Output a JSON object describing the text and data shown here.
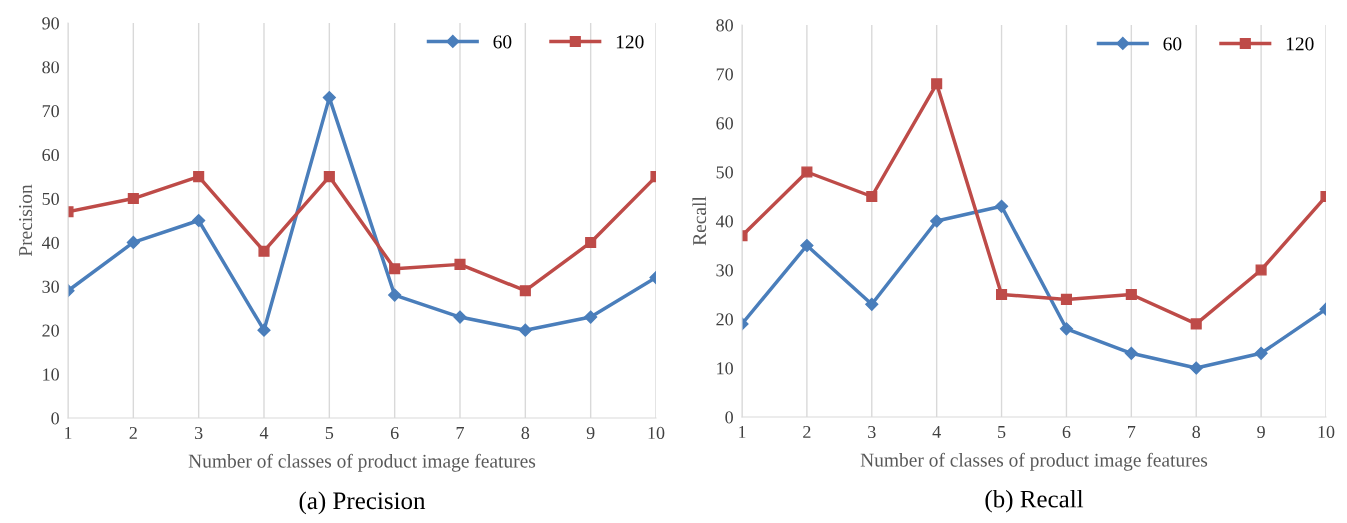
{
  "chart_data": [
    {
      "type": "line",
      "xlabel": "Number of classes of product image features",
      "ylabel": "Precision",
      "annotations": [
        "(a) Precision"
      ],
      "categories": [
        "1",
        "2",
        "3",
        "4",
        "5",
        "6",
        "7",
        "8",
        "9",
        "10"
      ],
      "ylim": [
        0,
        90
      ],
      "yticks": [
        0,
        10,
        20,
        30,
        40,
        50,
        60,
        70,
        80,
        90
      ],
      "grid": "x",
      "legend": "top right",
      "line_style": "solid",
      "series": [
        {
          "name": "60",
          "color": "#4a7ebb",
          "marker": "diamond",
          "values": [
            29,
            40,
            45,
            20,
            73,
            28,
            23,
            20,
            23,
            32
          ]
        },
        {
          "name": "120",
          "color": "#be4b48",
          "marker": "square",
          "values": [
            47,
            50,
            55,
            38,
            55,
            34,
            35,
            29,
            40,
            55
          ]
        }
      ]
    },
    {
      "type": "line",
      "xlabel": "Number of classes of product image features",
      "ylabel": "Recall",
      "annotations": [
        "(b) Recall"
      ],
      "categories": [
        "1",
        "2",
        "3",
        "4",
        "5",
        "6",
        "7",
        "8",
        "9",
        "10"
      ],
      "ylim": [
        0,
        80
      ],
      "yticks": [
        0,
        10,
        20,
        30,
        40,
        50,
        60,
        70,
        80
      ],
      "grid": "x",
      "legend": "top right",
      "line_style": "solid",
      "series": [
        {
          "name": "60",
          "color": "#4a7ebb",
          "marker": "diamond",
          "values": [
            19,
            35,
            23,
            40,
            43,
            18,
            13,
            10,
            13,
            22
          ]
        },
        {
          "name": "120",
          "color": "#be4b48",
          "marker": "square",
          "values": [
            37,
            50,
            45,
            68,
            25,
            24,
            25,
            19,
            30,
            45
          ]
        }
      ]
    }
  ]
}
